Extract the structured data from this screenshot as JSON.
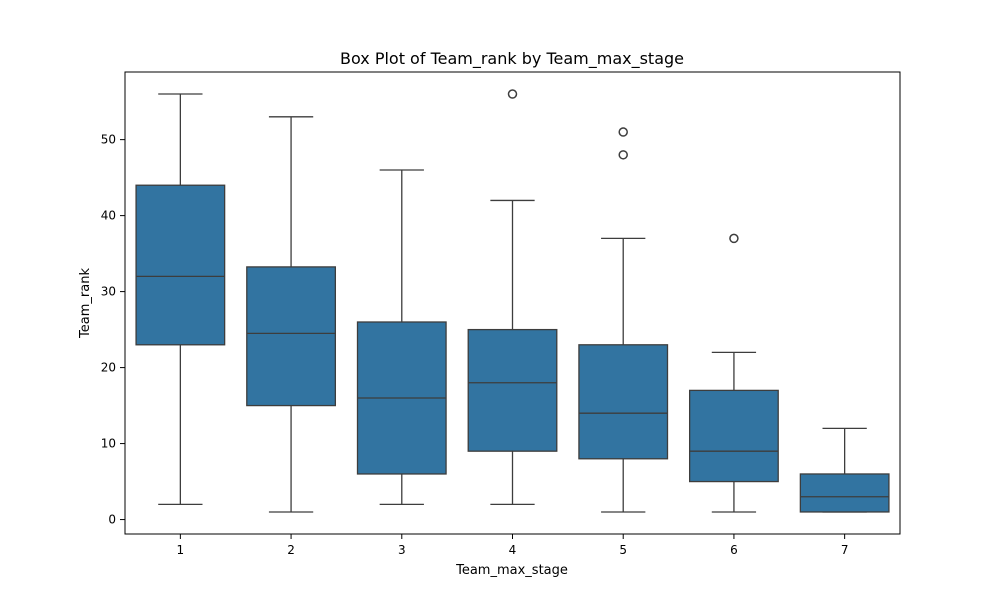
{
  "chart_data": {
    "type": "box",
    "title": "Box Plot of Team_rank by Team_max_stage",
    "xlabel": "Team_max_stage",
    "ylabel": "Team_rank",
    "categories": [
      "1",
      "2",
      "3",
      "4",
      "5",
      "6",
      "7"
    ],
    "ylim": [
      -1.9,
      58.9
    ],
    "yticks": [
      0,
      10,
      20,
      30,
      40,
      50
    ],
    "grid": false,
    "color": "#3274a1",
    "line_color": "#3d3d3d",
    "boxes": [
      {
        "category": "1",
        "whisker_low": 2,
        "q1": 23,
        "median": 32,
        "q3": 44,
        "whisker_high": 56,
        "outliers": []
      },
      {
        "category": "2",
        "whisker_low": 1,
        "q1": 15,
        "median": 24.5,
        "q3": 33.25,
        "whisker_high": 53,
        "outliers": []
      },
      {
        "category": "3",
        "whisker_low": 2,
        "q1": 6,
        "median": 16,
        "q3": 26,
        "whisker_high": 46,
        "outliers": []
      },
      {
        "category": "4",
        "whisker_low": 2,
        "q1": 9,
        "median": 18,
        "q3": 25,
        "whisker_high": 42,
        "outliers": [
          56
        ]
      },
      {
        "category": "5",
        "whisker_low": 1,
        "q1": 8,
        "median": 14,
        "q3": 23,
        "whisker_high": 37,
        "outliers": [
          48,
          51
        ]
      },
      {
        "category": "6",
        "whisker_low": 1,
        "q1": 5,
        "median": 9,
        "q3": 17,
        "whisker_high": 22,
        "outliers": [
          37
        ]
      },
      {
        "category": "7",
        "whisker_low": 1,
        "q1": 1,
        "median": 3,
        "q3": 6,
        "whisker_high": 12,
        "outliers": []
      }
    ]
  }
}
